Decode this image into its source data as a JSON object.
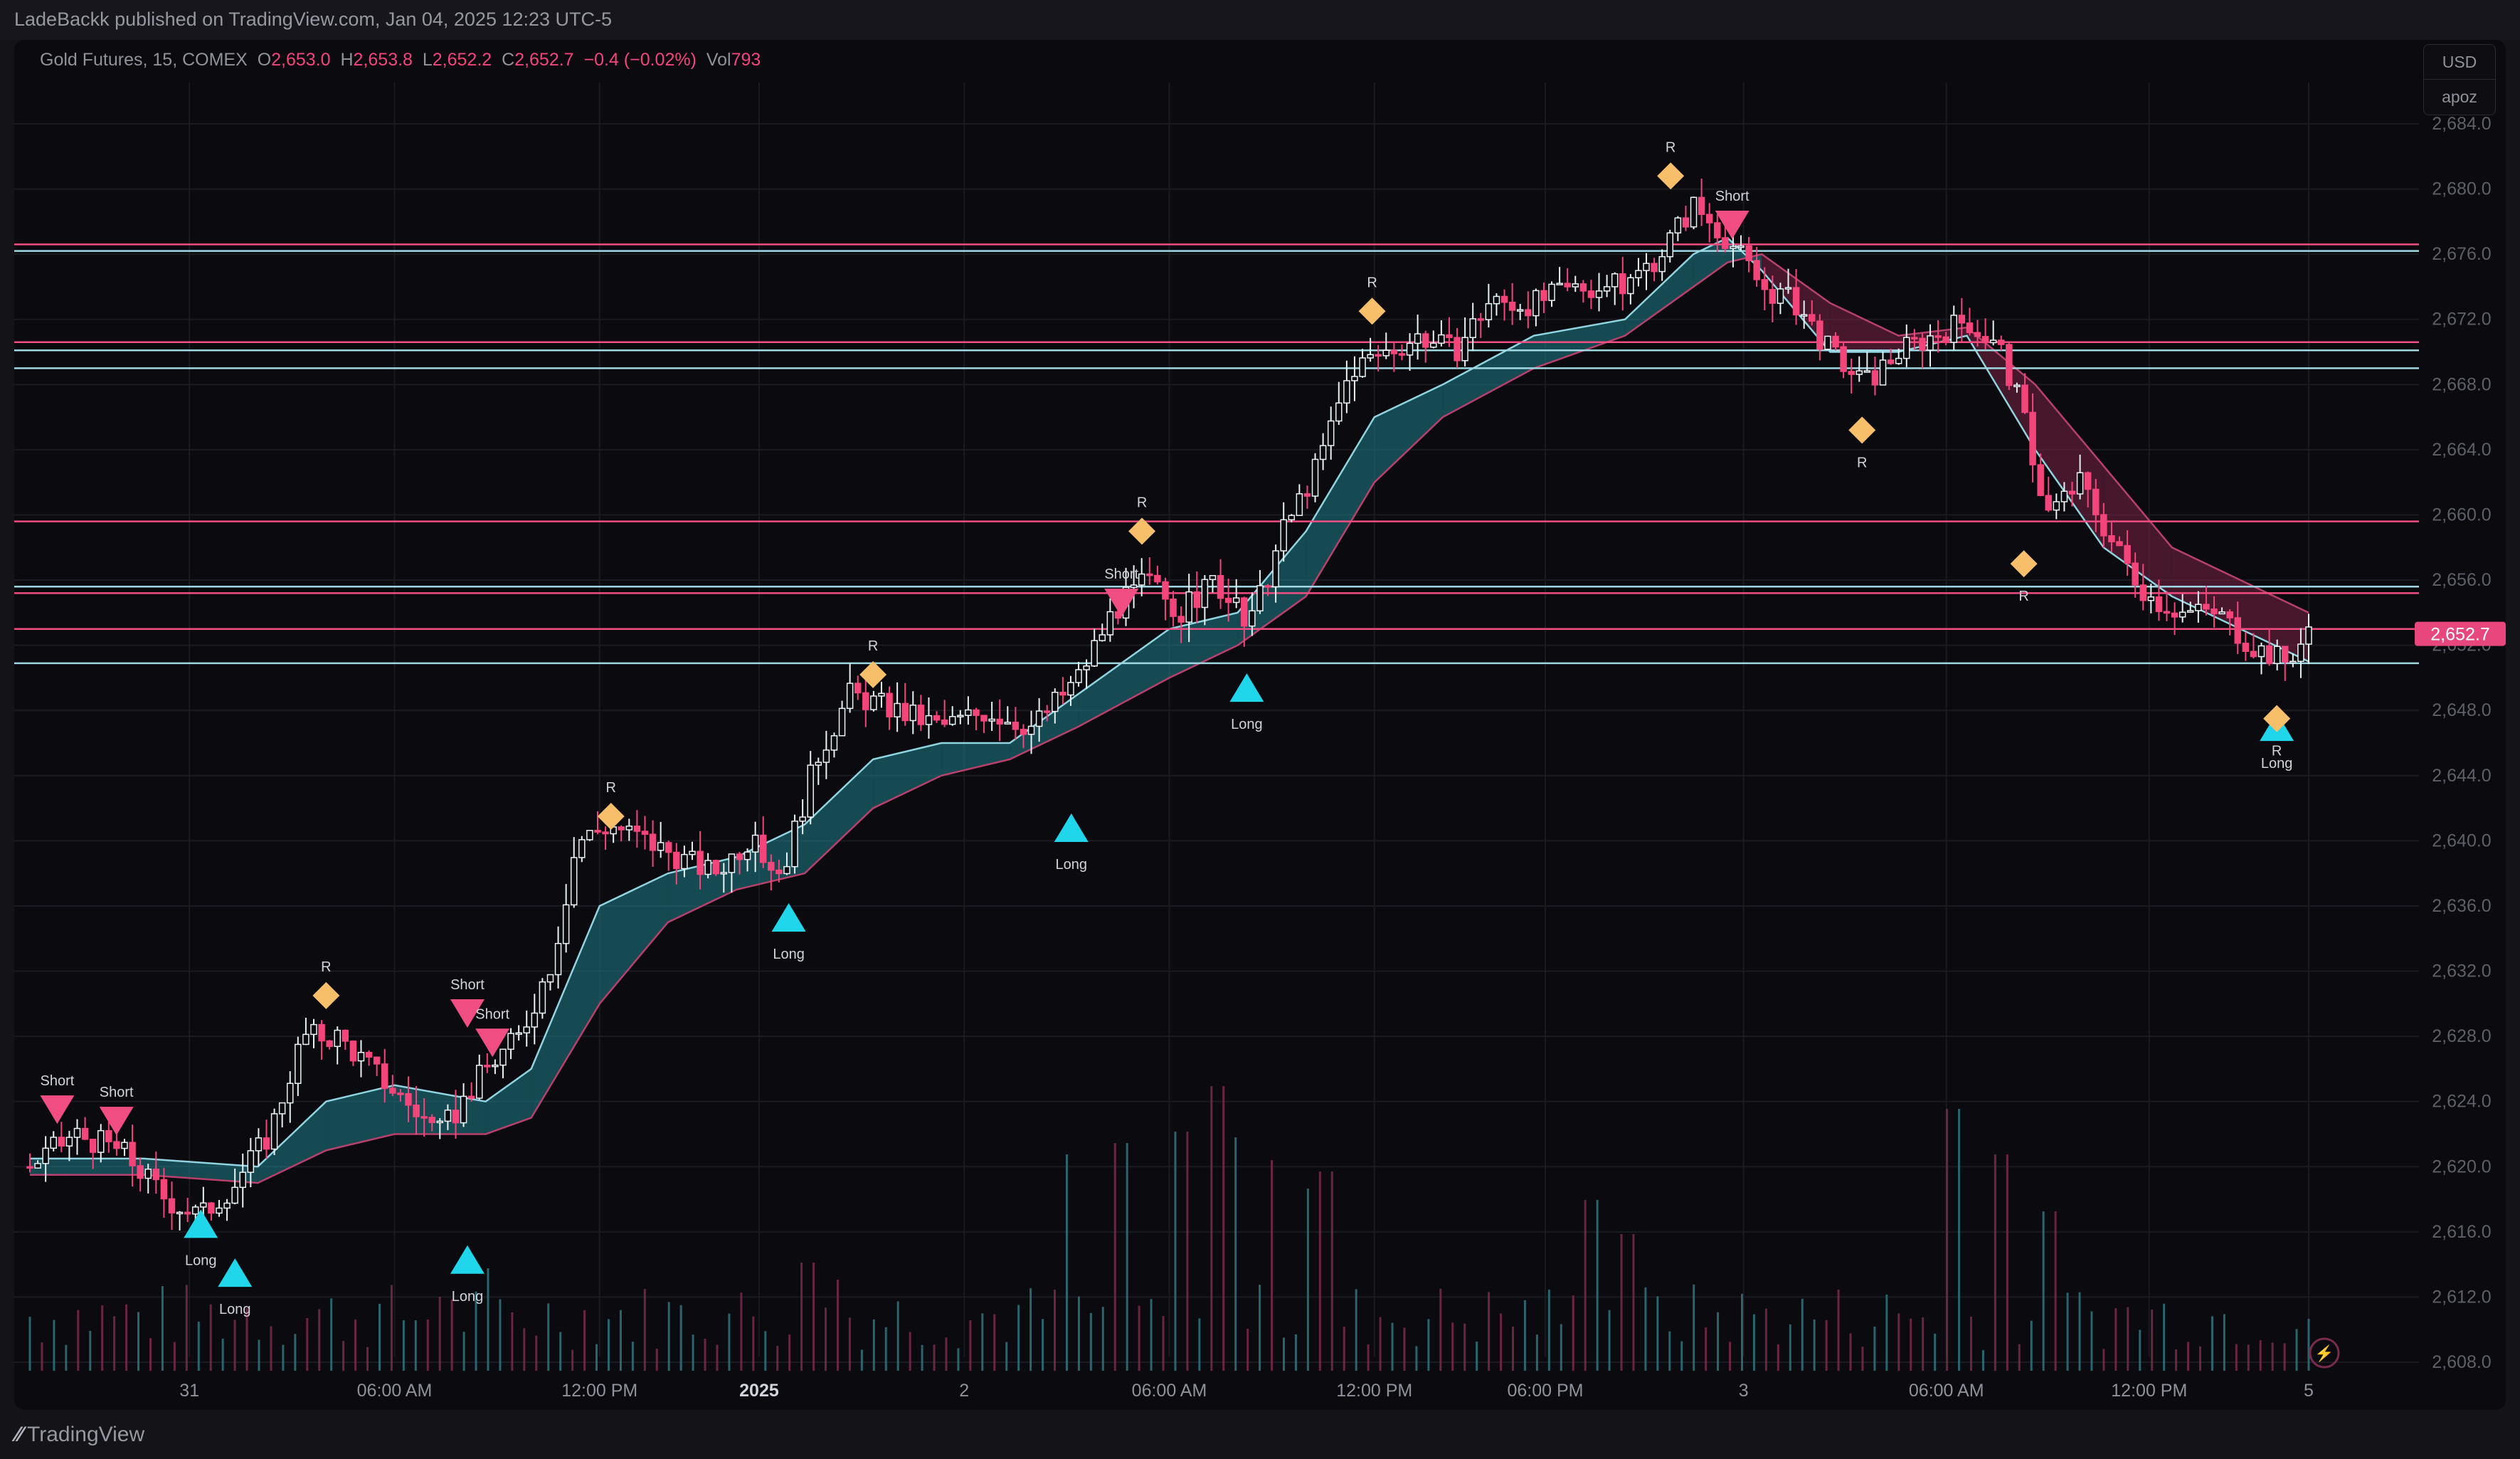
{
  "header": {
    "published": "LadeBackk published on TradingView.com, Jan 04, 2025 12:23 UTC-5"
  },
  "legend": {
    "symbol": "Gold Futures, 15, COMEX",
    "o_label": "O",
    "o_value": "2,653.0",
    "h_label": "H",
    "h_value": "2,653.8",
    "l_label": "L",
    "l_value": "2,652.2",
    "c_label": "C",
    "c_value": "2,652.7",
    "change": "−0.4 (−0.02%)",
    "vol_label": "Vol",
    "vol_value": "793"
  },
  "currency": {
    "unit": "USD",
    "indicator": "apoz"
  },
  "footer": {
    "brand": "TradingView",
    "brand_icon": "tradingview-logo-icon"
  },
  "colors": {
    "background": "#0a0a0f",
    "bull": "#e9f2f5",
    "bear": "#f4457b",
    "signal_long": "#1fd6ea",
    "signal_short": "#f04d82",
    "signal_r": "#f8bf6a",
    "band_bull": "#1f7f8c",
    "band_bear": "#7a2246",
    "grid": "#1a1a22",
    "price_tag": "#e8477d"
  },
  "chart_data": {
    "type": "candlestick",
    "symbol": "Gold Futures, 15, COMEX",
    "ylim": [
      2606,
      2686
    ],
    "y_ticks": [
      "2,608.0",
      "2,612.0",
      "2,616.0",
      "2,620.0",
      "2,624.0",
      "2,628.0",
      "2,632.0",
      "2,636.0",
      "2,640.0",
      "2,644.0",
      "2,648.0",
      "2,652.0",
      "2,656.0",
      "2,660.0",
      "2,664.0",
      "2,668.0",
      "2,672.0",
      "2,676.0",
      "2,680.0",
      "2,684.0"
    ],
    "y_tick_values": [
      2608,
      2612,
      2616,
      2620,
      2624,
      2628,
      2632,
      2636,
      2640,
      2644,
      2648,
      2652,
      2656,
      2660,
      2664,
      2668,
      2672,
      2676,
      2680,
      2684
    ],
    "x_ticks": [
      {
        "label": "31",
        "t": 0.07,
        "bold": false
      },
      {
        "label": "06:00 AM",
        "t": 0.16,
        "bold": false
      },
      {
        "label": "12:00 PM",
        "t": 0.25,
        "bold": false
      },
      {
        "label": "2025",
        "t": 0.32,
        "bold": true
      },
      {
        "label": "2",
        "t": 0.41,
        "bold": false
      },
      {
        "label": "06:00 AM",
        "t": 0.5,
        "bold": false
      },
      {
        "label": "12:00 PM",
        "t": 0.59,
        "bold": false
      },
      {
        "label": "06:00 PM",
        "t": 0.665,
        "bold": false
      },
      {
        "label": "3",
        "t": 0.752,
        "bold": false
      },
      {
        "label": "06:00 AM",
        "t": 0.841,
        "bold": false
      },
      {
        "label": "12:00 PM",
        "t": 0.93,
        "bold": false
      },
      {
        "label": "5",
        "t": 1.0,
        "bold": false
      }
    ],
    "price_path": [
      [
        0,
        2620
      ],
      [
        0.02,
        2622
      ],
      [
        0.04,
        2621
      ],
      [
        0.06,
        2618
      ],
      [
        0.075,
        2617
      ],
      [
        0.09,
        2619
      ],
      [
        0.105,
        2622
      ],
      [
        0.12,
        2628
      ],
      [
        0.135,
        2628
      ],
      [
        0.15,
        2626
      ],
      [
        0.165,
        2624
      ],
      [
        0.18,
        2622
      ],
      [
        0.19,
        2624
      ],
      [
        0.2,
        2626
      ],
      [
        0.215,
        2628
      ],
      [
        0.23,
        2633
      ],
      [
        0.24,
        2640
      ],
      [
        0.255,
        2641
      ],
      [
        0.27,
        2640
      ],
      [
        0.285,
        2639
      ],
      [
        0.3,
        2638
      ],
      [
        0.315,
        2640
      ],
      [
        0.33,
        2638
      ],
      [
        0.345,
        2645
      ],
      [
        0.36,
        2649
      ],
      [
        0.38,
        2648
      ],
      [
        0.4,
        2647
      ],
      [
        0.42,
        2648
      ],
      [
        0.44,
        2647
      ],
      [
        0.46,
        2650
      ],
      [
        0.475,
        2654
      ],
      [
        0.49,
        2656
      ],
      [
        0.505,
        2654
      ],
      [
        0.52,
        2656
      ],
      [
        0.535,
        2653
      ],
      [
        0.55,
        2659
      ],
      [
        0.565,
        2663
      ],
      [
        0.58,
        2669
      ],
      [
        0.595,
        2670
      ],
      [
        0.61,
        2671
      ],
      [
        0.625,
        2670
      ],
      [
        0.64,
        2673
      ],
      [
        0.66,
        2673
      ],
      [
        0.68,
        2674
      ],
      [
        0.7,
        2674
      ],
      [
        0.715,
        2676
      ],
      [
        0.73,
        2679
      ],
      [
        0.745,
        2677
      ],
      [
        0.76,
        2674
      ],
      [
        0.775,
        2673
      ],
      [
        0.79,
        2670
      ],
      [
        0.805,
        2668
      ],
      [
        0.82,
        2670
      ],
      [
        0.835,
        2671
      ],
      [
        0.85,
        2672
      ],
      [
        0.865,
        2670
      ],
      [
        0.875,
        2666
      ],
      [
        0.885,
        2660
      ],
      [
        0.9,
        2662
      ],
      [
        0.915,
        2658
      ],
      [
        0.93,
        2655
      ],
      [
        0.945,
        2654
      ],
      [
        0.96,
        2654
      ],
      [
        0.975,
        2652
      ],
      [
        0.99,
        2651
      ],
      [
        1.0,
        2652.7
      ]
    ],
    "ribbon": [
      [
        0,
        2620.5,
        2619.5
      ],
      [
        0.05,
        2620.5,
        2619.5
      ],
      [
        0.1,
        2620,
        2619
      ],
      [
        0.13,
        2624,
        2621
      ],
      [
        0.16,
        2625,
        2622
      ],
      [
        0.2,
        2624,
        2622
      ],
      [
        0.22,
        2626,
        2623
      ],
      [
        0.25,
        2636,
        2630
      ],
      [
        0.28,
        2638,
        2635
      ],
      [
        0.31,
        2639,
        2637
      ],
      [
        0.34,
        2641,
        2638
      ],
      [
        0.37,
        2645,
        2642
      ],
      [
        0.4,
        2646,
        2644
      ],
      [
        0.43,
        2646,
        2645
      ],
      [
        0.46,
        2649,
        2647
      ],
      [
        0.5,
        2653,
        2650
      ],
      [
        0.53,
        2654,
        2652
      ],
      [
        0.56,
        2659,
        2655
      ],
      [
        0.59,
        2666,
        2662
      ],
      [
        0.62,
        2668,
        2666
      ],
      [
        0.66,
        2671,
        2669
      ],
      [
        0.7,
        2672,
        2671
      ],
      [
        0.73,
        2676,
        2674
      ],
      [
        0.745,
        2677,
        2675.5
      ],
      [
        0.76,
        2675,
        2676
      ],
      [
        0.79,
        2670,
        2673
      ],
      [
        0.82,
        2670,
        2671
      ],
      [
        0.85,
        2671,
        2671.5
      ],
      [
        0.88,
        2664,
        2668
      ],
      [
        0.91,
        2658,
        2663
      ],
      [
        0.94,
        2655,
        2658
      ],
      [
        0.97,
        2653,
        2656
      ],
      [
        1.0,
        2651,
        2654
      ]
    ],
    "volume": {
      "ylim": [
        0,
        300
      ],
      "bars": [
        {
          "t": 0.455,
          "v": 190,
          "dir": "up"
        },
        {
          "t": 0.48,
          "v": 200,
          "dir": "up"
        },
        {
          "t": 0.505,
          "v": 210,
          "dir": "up"
        },
        {
          "t": 0.52,
          "v": 250,
          "dir": "up"
        },
        {
          "t": 0.53,
          "v": 205,
          "dir": "down"
        },
        {
          "t": 0.545,
          "v": 185,
          "dir": "up"
        },
        {
          "t": 0.56,
          "v": 160,
          "dir": "up"
        },
        {
          "t": 0.57,
          "v": 175,
          "dir": "up"
        },
        {
          "t": 0.685,
          "v": 150,
          "dir": "up"
        },
        {
          "t": 0.7,
          "v": 120,
          "dir": "down"
        },
        {
          "t": 0.845,
          "v": 230,
          "dir": "down"
        },
        {
          "t": 0.865,
          "v": 190,
          "dir": "down"
        },
        {
          "t": 0.885,
          "v": 140,
          "dir": "down"
        },
        {
          "t": 0.2,
          "v": 90,
          "dir": "down"
        },
        {
          "t": 0.34,
          "v": 95,
          "dir": "up"
        },
        {
          "t": 0.355,
          "v": 80,
          "dir": "up"
        },
        {
          "t": 0.095,
          "v": 55,
          "dir": "down"
        },
        {
          "t": 0.18,
          "v": 65,
          "dir": "up"
        }
      ]
    },
    "levels": [
      {
        "price": 2676.6,
        "color": "#f04d82"
      },
      {
        "price": 2676.2,
        "color": "#9fd8e3"
      },
      {
        "price": 2670.6,
        "color": "#f04d82"
      },
      {
        "price": 2670.1,
        "color": "#9fd8e3"
      },
      {
        "price": 2669.0,
        "color": "#9fd8e3"
      },
      {
        "price": 2659.6,
        "color": "#f04d82"
      },
      {
        "price": 2655.6,
        "color": "#9fd8e3"
      },
      {
        "price": 2655.2,
        "color": "#f04d82"
      },
      {
        "price": 2653.0,
        "color": "#f04d82"
      },
      {
        "price": 2650.9,
        "color": "#9fd8e3"
      }
    ],
    "signals": [
      {
        "type": "short",
        "label": "Short",
        "t": 0.012,
        "price": 2623.5
      },
      {
        "type": "short",
        "label": "Short",
        "t": 0.038,
        "price": 2622.8
      },
      {
        "type": "long",
        "label": "Long",
        "t": 0.075,
        "price": 2616.5
      },
      {
        "type": "long",
        "label": "Long",
        "t": 0.09,
        "price": 2613.5
      },
      {
        "type": "r",
        "label": "R",
        "t": 0.13,
        "price": 2630.5
      },
      {
        "type": "short",
        "label": "Short",
        "t": 0.192,
        "price": 2629.4
      },
      {
        "type": "short",
        "label": "Short",
        "t": 0.203,
        "price": 2627.6
      },
      {
        "type": "long",
        "label": "Long",
        "t": 0.192,
        "price": 2614.3
      },
      {
        "type": "r",
        "label": "R",
        "t": 0.255,
        "price": 2641.5
      },
      {
        "type": "long",
        "label": "Long",
        "t": 0.333,
        "price": 2635.3
      },
      {
        "type": "r",
        "label": "R",
        "t": 0.37,
        "price": 2650.2
      },
      {
        "type": "long",
        "label": "Long",
        "t": 0.457,
        "price": 2640.8
      },
      {
        "type": "r",
        "label": "R",
        "t": 0.488,
        "price": 2659.0
      },
      {
        "type": "short",
        "label": "Short",
        "t": 0.479,
        "price": 2654.6
      },
      {
        "type": "long",
        "label": "Long",
        "t": 0.534,
        "price": 2649.4
      },
      {
        "type": "r",
        "label": "R",
        "t": 0.589,
        "price": 2672.5
      },
      {
        "type": "r",
        "label": "R",
        "t": 0.72,
        "price": 2680.8
      },
      {
        "type": "short",
        "label": "Short",
        "t": 0.747,
        "price": 2677.8
      },
      {
        "type": "r",
        "label": "R",
        "t": 0.804,
        "price": 2665.2
      },
      {
        "type": "r",
        "label": "R",
        "t": 0.875,
        "price": 2657.0
      },
      {
        "type": "long",
        "label": "Long",
        "t": 0.986,
        "price": 2647.0
      },
      {
        "type": "r",
        "label": "R",
        "t": 0.986,
        "price": 2647.5
      }
    ],
    "last_price": {
      "value": 2652.7,
      "label": "2,652.7"
    }
  }
}
